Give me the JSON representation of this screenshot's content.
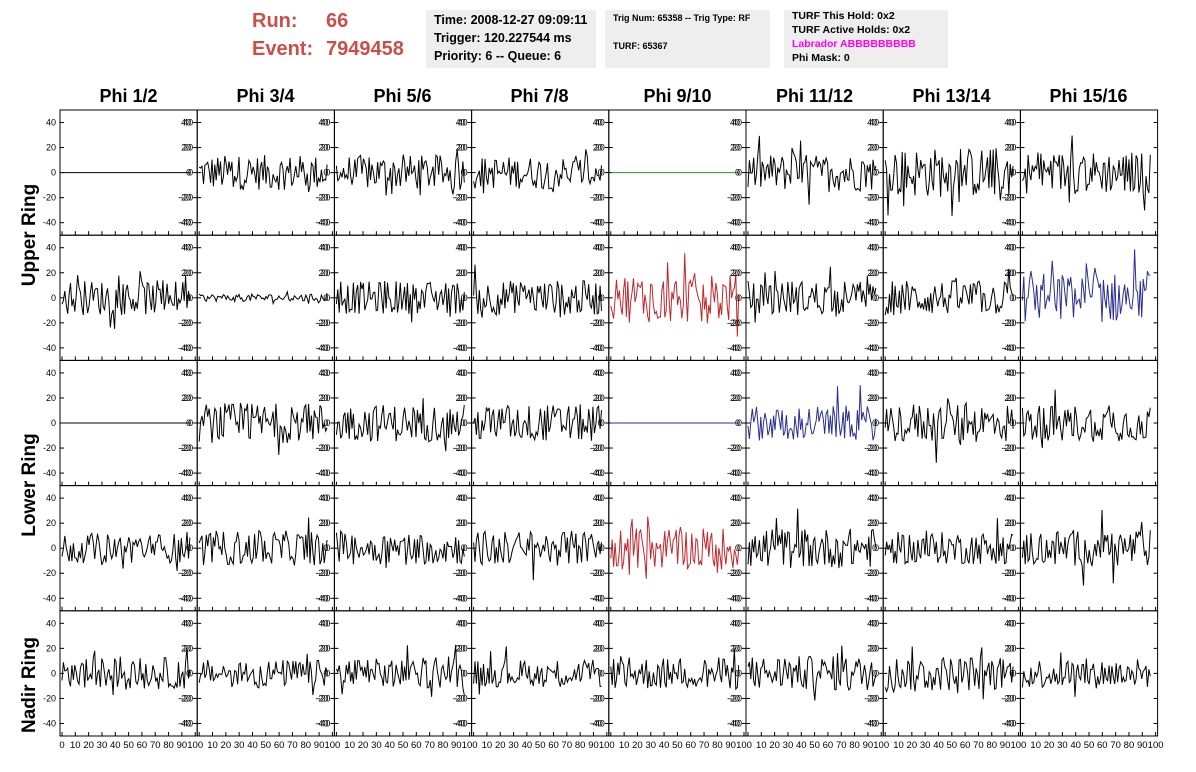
{
  "header": {
    "run_label": "Run:",
    "run_value": "66",
    "event_label": "Event:",
    "event_value": "7949458",
    "time_text": "Time: 2008-12-27 09:09:11",
    "trigger_text": "Trigger: 120.227544 ms",
    "priority_text": "Priority: 6 -- Queue: 6",
    "trig_num_text": "Trig Num: 65358 -- Trig Type: RF",
    "turf_text": "TURF: 65367",
    "turf_this_hold_text": "TURF This Hold: 0x2",
    "turf_active_holds_text": "TURF Active Holds: 0x2",
    "labrador_text": "Labrador ABBBBBBBBB",
    "labrador_color": "#ff00ff",
    "phi_mask_text": "Phi Mask: 0"
  },
  "columns": [
    "Phi 1/2",
    "Phi 3/4",
    "Phi 5/6",
    "Phi 7/8",
    "Phi 9/10",
    "Phi 11/12",
    "Phi 13/14",
    "Phi 15/16"
  ],
  "rows": [
    "Upper Ring",
    "Lower Ring",
    "Nadir Ring"
  ],
  "chart_data": {
    "type": "line",
    "x_ticks": [
      0,
      10,
      20,
      30,
      40,
      50,
      60,
      70,
      80,
      90,
      100
    ],
    "x_tick_labels": [
      "0",
      "10",
      "20",
      "30",
      "40",
      "50",
      "60",
      "70",
      "80",
      "90",
      "100"
    ],
    "xlim": [
      0,
      100
    ],
    "ylim": [
      -50,
      50
    ],
    "y_ticks": [
      -40,
      -20,
      0,
      20,
      40
    ],
    "y_tick_labels": [
      "-40",
      "-20",
      "0",
      "20",
      "40"
    ],
    "samples": 90,
    "colors": {
      "normal": "#000000",
      "red": "#c0272d",
      "blue": "#2b2f8f",
      "green": "#2e8b2e"
    },
    "panels": [
      [
        {
          "amp": 0,
          "color": "normal"
        },
        {
          "amp": 14,
          "color": "normal"
        },
        {
          "amp": 14,
          "color": "normal"
        },
        {
          "amp": 13,
          "color": "normal"
        },
        {
          "amp": 0,
          "color": "green"
        },
        {
          "amp": 15,
          "color": "normal"
        },
        {
          "amp": 20,
          "color": "normal"
        },
        {
          "amp": 17,
          "color": "normal"
        }
      ],
      [
        {
          "amp": 14,
          "color": "normal"
        },
        {
          "amp": 3,
          "color": "normal"
        },
        {
          "amp": 13,
          "color": "normal"
        },
        {
          "amp": 14,
          "color": "normal"
        },
        {
          "amp": 20,
          "color": "red"
        },
        {
          "amp": 14,
          "color": "normal"
        },
        {
          "amp": 14,
          "color": "normal"
        },
        {
          "amp": 20,
          "color": "blue"
        }
      ],
      [
        {
          "amp": 0,
          "color": "normal"
        },
        {
          "amp": 16,
          "color": "normal"
        },
        {
          "amp": 15,
          "color": "normal"
        },
        {
          "amp": 15,
          "color": "normal"
        },
        {
          "amp": 0,
          "color": "blue"
        },
        {
          "amp": 14,
          "color": "blue"
        },
        {
          "amp": 16,
          "color": "normal"
        },
        {
          "amp": 15,
          "color": "normal"
        }
      ],
      [
        {
          "amp": 12,
          "color": "normal"
        },
        {
          "amp": 14,
          "color": "normal"
        },
        {
          "amp": 13,
          "color": "normal"
        },
        {
          "amp": 14,
          "color": "normal"
        },
        {
          "amp": 17,
          "color": "red"
        },
        {
          "amp": 16,
          "color": "normal"
        },
        {
          "amp": 13,
          "color": "normal"
        },
        {
          "amp": 15,
          "color": "normal"
        }
      ],
      [
        {
          "amp": 13,
          "color": "normal"
        },
        {
          "amp": 11,
          "color": "normal"
        },
        {
          "amp": 12,
          "color": "normal"
        },
        {
          "amp": 11,
          "color": "normal"
        },
        {
          "amp": 13,
          "color": "normal"
        },
        {
          "amp": 14,
          "color": "normal"
        },
        {
          "amp": 14,
          "color": "normal"
        },
        {
          "amp": 12,
          "color": "normal"
        }
      ]
    ]
  }
}
